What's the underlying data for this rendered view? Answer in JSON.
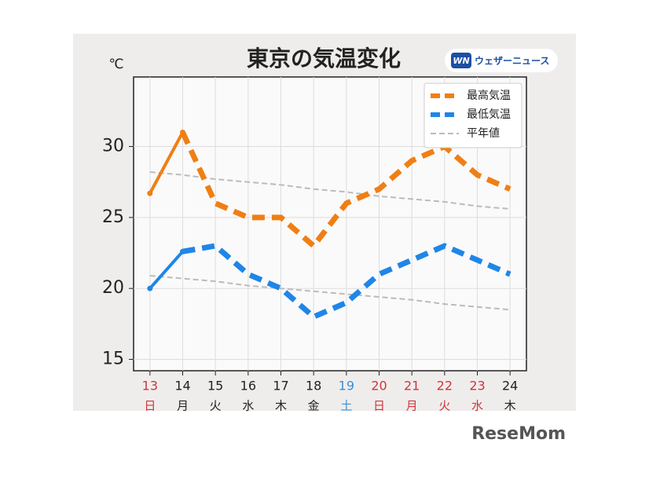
{
  "chart_data": {
    "type": "line",
    "title": "東京の気温変化",
    "unit": "℃",
    "categories": [
      "13",
      "14",
      "15",
      "16",
      "17",
      "18",
      "19",
      "20",
      "21",
      "22",
      "23",
      "24"
    ],
    "weekdays": [
      "日",
      "月",
      "火",
      "水",
      "木",
      "金",
      "土",
      "日",
      "月",
      "火",
      "水",
      "木"
    ],
    "label_colors": [
      "#d2343a",
      "#222222",
      "#222222",
      "#222222",
      "#222222",
      "#222222",
      "#3a8fd8",
      "#d2343a",
      "#d2343a",
      "#d2343a",
      "#d2343a",
      "#222222"
    ],
    "series": [
      {
        "name": "最高気温",
        "color": "#ef7f14",
        "values": [
          26.7,
          31,
          26,
          25,
          25,
          23,
          26,
          27,
          29,
          30,
          28,
          27
        ]
      },
      {
        "name": "最低気温",
        "color": "#1f86e8",
        "values": [
          20,
          22.6,
          23,
          21,
          20,
          18,
          19,
          21,
          22,
          23,
          22,
          21
        ]
      }
    ],
    "normals": {
      "name": "平年値",
      "color": "#bbbbbb",
      "high": [
        28.2,
        28.0,
        27.7,
        27.5,
        27.3,
        27.0,
        26.8,
        26.5,
        26.3,
        26.1,
        25.8,
        25.6
      ],
      "low": [
        20.9,
        20.7,
        20.5,
        20.2,
        20.0,
        19.8,
        19.6,
        19.4,
        19.2,
        18.9,
        18.7,
        18.5
      ]
    },
    "solid_until_index": 1,
    "ylim": [
      14.2,
      34.9
    ],
    "yticks": [
      15,
      20,
      25,
      30
    ],
    "grid": true,
    "legend": "upper right"
  },
  "logo": {
    "badge": "WN",
    "text": "ウェザーニュース"
  },
  "watermark": "ReseMom"
}
